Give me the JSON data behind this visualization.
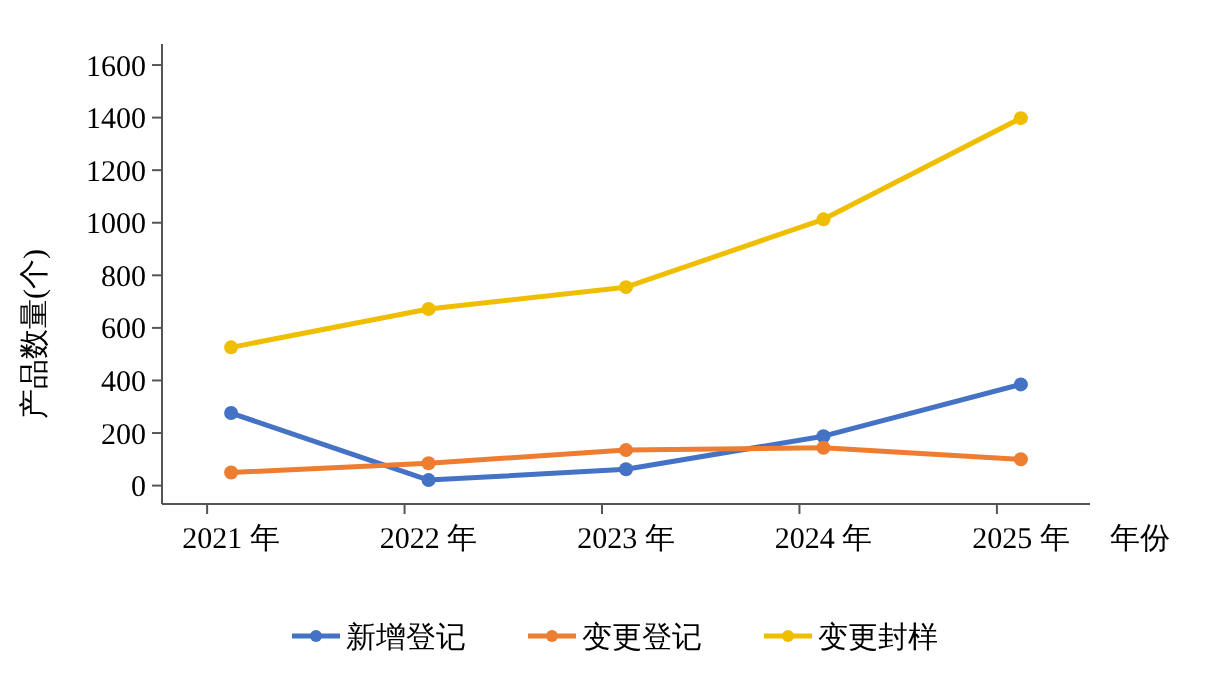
{
  "chart_data": {
    "type": "line",
    "categories": [
      "2021 年",
      "2022 年",
      "2023 年",
      "2024 年",
      "2025 年"
    ],
    "xlabel": "年份",
    "ylabel": "产品数量(个)",
    "ylim": [
      -70,
      1680
    ],
    "yticks": [
      0,
      200,
      400,
      600,
      800,
      1000,
      1200,
      1400,
      1600
    ],
    "grid": false,
    "legend": "bottom",
    "marker": "circle",
    "series": [
      {
        "name": "新增登记",
        "color": "#4472c4",
        "values": [
          276,
          21,
          62,
          188,
          385
        ]
      },
      {
        "name": "变更登记",
        "color": "#ed7d31",
        "values": [
          50,
          85,
          135,
          144,
          100
        ]
      },
      {
        "name": "变更封样",
        "color": "#f0be00",
        "values": [
          526,
          672,
          755,
          1013,
          1398
        ]
      }
    ]
  }
}
